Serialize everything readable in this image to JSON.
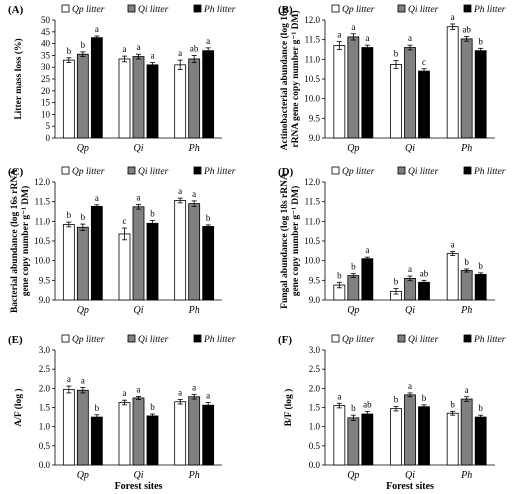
{
  "x_axis_title": "Forest sites",
  "chart_data": [
    {
      "panel": "(A)",
      "type": "bar",
      "ylabel": "Litter mass loss (%)",
      "ylim": [
        0,
        50
      ],
      "yticks": [
        "0",
        "5",
        "10",
        "15",
        "20",
        "25",
        "30",
        "35",
        "40",
        "45",
        "50"
      ],
      "categories": [
        "Qp",
        "Qi",
        "Ph"
      ],
      "series": [
        {
          "name": "Qp litter",
          "values": [
            33.0,
            33.5,
            31.0
          ],
          "errors": [
            1.0,
            1.2,
            2.0
          ],
          "letters": [
            "b",
            "a",
            "a"
          ]
        },
        {
          "name": "Qi litter",
          "values": [
            35.5,
            34.5,
            33.5
          ],
          "errors": [
            1.0,
            1.0,
            1.5
          ],
          "letters": [
            "b",
            "a",
            "ab"
          ]
        },
        {
          "name": "Ph litter",
          "values": [
            42.5,
            31.0,
            37.0
          ],
          "errors": [
            0.7,
            1.0,
            1.2
          ],
          "letters": [
            "a",
            "a",
            "a"
          ]
        }
      ]
    },
    {
      "panel": "(B)",
      "type": "bar",
      "ylabel": "Actinobacterial abundance (log 16s rRNA gene copy number g⁻¹ DM)",
      "ylim": [
        9.0,
        12.0
      ],
      "yticks": [
        "9.0",
        "9.5",
        "10.0",
        "10.5",
        "11.0",
        "11.5",
        "12.0"
      ],
      "categories": [
        "Qp",
        "Qi",
        "Ph"
      ],
      "series": [
        {
          "name": "Qp litter",
          "values": [
            11.35,
            10.87,
            11.83
          ],
          "errors": [
            0.1,
            0.1,
            0.07
          ],
          "letters": [
            "a",
            "b",
            "a"
          ]
        },
        {
          "name": "Qi litter",
          "values": [
            11.57,
            11.3,
            11.52
          ],
          "errors": [
            0.08,
            0.06,
            0.06
          ],
          "letters": [
            "a",
            "a",
            "ab"
          ]
        },
        {
          "name": "Ph litter",
          "values": [
            11.3,
            10.7,
            11.22
          ],
          "errors": [
            0.06,
            0.06,
            0.06
          ],
          "letters": [
            "a",
            "c",
            "b"
          ]
        }
      ]
    },
    {
      "panel": "(C)",
      "type": "bar",
      "ylabel": "Bacterial abundance (log 16s rRNA gene copy number g⁻¹ DM)",
      "ylim": [
        9.0,
        12.0
      ],
      "yticks": [
        "9.0",
        "9.5",
        "10.0",
        "10.5",
        "11.0",
        "11.5",
        "12.0"
      ],
      "categories": [
        "Qp",
        "Qi",
        "Ph"
      ],
      "series": [
        {
          "name": "Qp litter",
          "values": [
            10.92,
            10.68,
            11.53
          ],
          "errors": [
            0.06,
            0.15,
            0.06
          ],
          "letters": [
            "b",
            "c",
            "a"
          ]
        },
        {
          "name": "Qi litter",
          "values": [
            10.85,
            11.37,
            11.45
          ],
          "errors": [
            0.08,
            0.06,
            0.07
          ],
          "letters": [
            "b",
            "a",
            "a"
          ]
        },
        {
          "name": "Ph litter",
          "values": [
            11.38,
            10.95,
            10.87
          ],
          "errors": [
            0.04,
            0.07,
            0.04
          ],
          "letters": [
            "a",
            "b",
            "b"
          ]
        }
      ]
    },
    {
      "panel": "(D)",
      "type": "bar",
      "ylabel": "Fungal abundance (log 18s rRNA gene copy number g⁻¹ DM)",
      "ylim": [
        9.0,
        12.0
      ],
      "yticks": [
        "9.0",
        "9.5",
        "10.0",
        "10.5",
        "11.0",
        "11.5",
        "12.0"
      ],
      "categories": [
        "Qp",
        "Qi",
        "Ph"
      ],
      "series": [
        {
          "name": "Qp litter",
          "values": [
            9.38,
            9.22,
            10.18
          ],
          "errors": [
            0.07,
            0.07,
            0.05
          ],
          "letters": [
            "b",
            "b",
            "a"
          ]
        },
        {
          "name": "Qi litter",
          "values": [
            9.62,
            9.55,
            9.75
          ],
          "errors": [
            0.05,
            0.06,
            0.04
          ],
          "letters": [
            "b",
            "a",
            "b"
          ]
        },
        {
          "name": "Ph litter",
          "values": [
            10.05,
            9.45,
            9.65
          ],
          "errors": [
            0.04,
            0.05,
            0.04
          ],
          "letters": [
            "a",
            "ab",
            "b"
          ]
        }
      ]
    },
    {
      "panel": "(E)",
      "type": "bar",
      "ylabel": "A/F (log )",
      "ylim": [
        0,
        3.0
      ],
      "yticks": [
        "0.0",
        "0.5",
        "1.0",
        "1.5",
        "2.0",
        "2.5",
        "3.0"
      ],
      "categories": [
        "Qp",
        "Qi",
        "Ph"
      ],
      "series": [
        {
          "name": "Qp litter",
          "values": [
            1.97,
            1.63,
            1.65
          ],
          "errors": [
            0.09,
            0.06,
            0.06
          ],
          "letters": [
            "a",
            "a",
            "a"
          ]
        },
        {
          "name": "Qi litter",
          "values": [
            1.95,
            1.75,
            1.78
          ],
          "errors": [
            0.07,
            0.04,
            0.06
          ],
          "letters": [
            "a",
            "a",
            "a"
          ]
        },
        {
          "name": "Ph litter",
          "values": [
            1.25,
            1.28,
            1.56
          ],
          "errors": [
            0.06,
            0.05,
            0.07
          ],
          "letters": [
            "b",
            "b",
            "a"
          ]
        }
      ]
    },
    {
      "panel": "(F)",
      "type": "bar",
      "ylabel": "B/F (log )",
      "ylim": [
        0,
        3.0
      ],
      "yticks": [
        "0.0",
        "0.5",
        "1.0",
        "1.5",
        "2.0",
        "2.5",
        "3.0"
      ],
      "categories": [
        "Qp",
        "Qi",
        "Ph"
      ],
      "series": [
        {
          "name": "Qp litter",
          "values": [
            1.55,
            1.47,
            1.35
          ],
          "errors": [
            0.06,
            0.06,
            0.05
          ],
          "letters": [
            "a",
            "b",
            "b"
          ]
        },
        {
          "name": "Qi litter",
          "values": [
            1.23,
            1.83,
            1.72
          ],
          "errors": [
            0.07,
            0.05,
            0.06
          ],
          "letters": [
            "b",
            "a",
            "a"
          ]
        },
        {
          "name": "Ph litter",
          "values": [
            1.33,
            1.52,
            1.25
          ],
          "errors": [
            0.07,
            0.05,
            0.05
          ],
          "letters": [
            "ab",
            "b",
            "b"
          ]
        }
      ]
    }
  ]
}
